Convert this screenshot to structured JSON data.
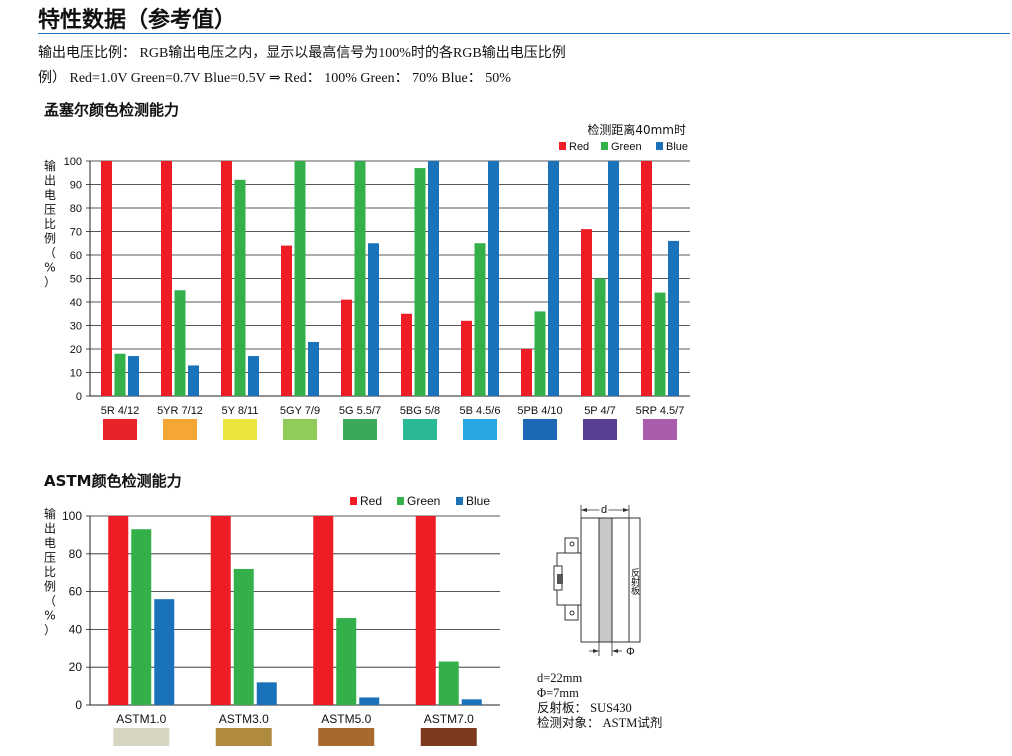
{
  "page": {
    "title": "特性数据（参考值）",
    "intro_line1": "输出电压比例： RGB输出电压之内，显示以最高信号为100%时的各RGB输出电压比例",
    "intro_line2": "例） Red=1.0V Green=0.7V Blue=0.5V ⇒ Red： 100% Green： 70% Blue： 50%"
  },
  "chart_data": [
    {
      "type": "bar",
      "title": "孟塞尔颜色检测能力",
      "subtitle": "检测距离40mm时",
      "ylabel": "输出电压比例（%）",
      "ylim": [
        0,
        100
      ],
      "yticks": [
        0,
        10,
        20,
        30,
        40,
        50,
        60,
        70,
        80,
        90,
        100
      ],
      "grid": true,
      "legend": "top-right",
      "categories": [
        "5R 4/12",
        "5YR 7/12",
        "5Y 8/11",
        "5GY 7/9",
        "5G 5.5/7",
        "5BG 5/8",
        "5B 4.5/6",
        "5PB 4/10",
        "5P 4/7",
        "5RP 4.5/7"
      ],
      "swatch_colors": [
        "#e8232a",
        "#f6a634",
        "#ebe43f",
        "#8fcc5c",
        "#3aa95a",
        "#2bb895",
        "#27a7e1",
        "#1c6ab5",
        "#5b3e96",
        "#a95eab"
      ],
      "series": [
        {
          "name": "Red",
          "color": "#ee1c25",
          "values": [
            100,
            100,
            100,
            64,
            41,
            35,
            32,
            20,
            71,
            100
          ]
        },
        {
          "name": "Green",
          "color": "#33b04a",
          "values": [
            18,
            45,
            92,
            100,
            100,
            97,
            65,
            36,
            50,
            44
          ]
        },
        {
          "name": "Blue",
          "color": "#1a73ba",
          "values": [
            17,
            13,
            17,
            23,
            65,
            100,
            100,
            100,
            100,
            66
          ]
        }
      ]
    },
    {
      "type": "bar",
      "title": "ASTM颜色检测能力",
      "ylabel": "输出电压比例（%）",
      "ylim": [
        0,
        100
      ],
      "yticks": [
        0,
        20,
        40,
        60,
        80,
        100
      ],
      "grid": true,
      "legend": "top-right",
      "categories": [
        "ASTM1.0",
        "ASTM3.0",
        "ASTM5.0",
        "ASTM7.0"
      ],
      "swatch_colors": [
        "#d8d4c2",
        "#b08a3e",
        "#a8692f",
        "#7d3a1e"
      ],
      "series": [
        {
          "name": "Red",
          "color": "#ee1c25",
          "values": [
            100,
            100,
            100,
            100
          ]
        },
        {
          "name": "Green",
          "color": "#33b04a",
          "values": [
            93,
            72,
            46,
            23
          ]
        },
        {
          "name": "Blue",
          "color": "#1a73ba",
          "values": [
            56,
            12,
            4,
            3
          ]
        }
      ]
    }
  ],
  "diagram": {
    "label_d": "d",
    "label_phi": "Φ",
    "label_reflector": "反射板",
    "notes": [
      "d=22mm",
      "Φ=7mm",
      "反射板： SUS430",
      "检测对象： ASTM试剂"
    ]
  }
}
